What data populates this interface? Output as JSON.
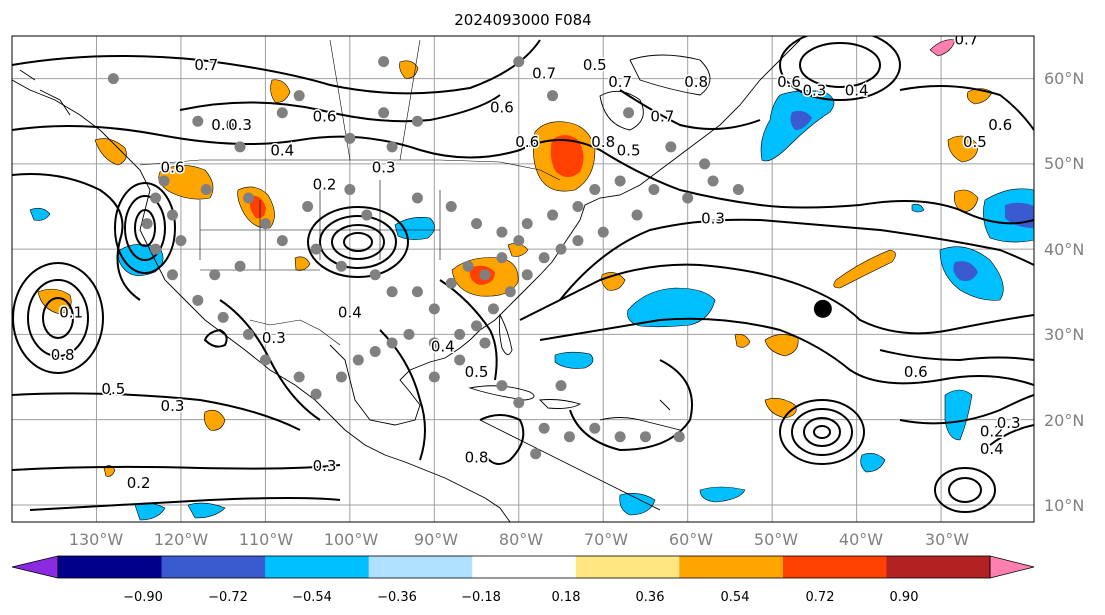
{
  "title": "2024093000 F084",
  "map": {
    "lon_range": [
      -140,
      -19
    ],
    "lat_range": [
      8,
      65
    ],
    "lon_ticks": [
      "130°W",
      "120°W",
      "110°W",
      "100°W",
      "90°W",
      "80°W",
      "70°W",
      "60°W",
      "50°W",
      "40°W",
      "30°W"
    ],
    "lat_ticks": [
      "60°N",
      "50°N",
      "40°N",
      "30°N",
      "20°N",
      "10°N"
    ],
    "grid": true
  },
  "colorbar": {
    "ticks": [
      "−0.90",
      "−0.72",
      "−0.54",
      "−0.36",
      "−0.18",
      "0.18",
      "0.36",
      "0.54",
      "0.72",
      "0.90"
    ],
    "colors": [
      "#8a2be2",
      "#00008b",
      "#3a5bcf",
      "#00bfff",
      "#b0e0ff",
      "#ffffff",
      "#ffe680",
      "#ffa500",
      "#ff4000",
      "#b22222",
      "#ff80b0"
    ],
    "extend": "both"
  },
  "contour_labels": [
    "0.7",
    "0.6",
    "0.3",
    "0.4",
    "0.6",
    "0.2",
    "0.3",
    "0.6",
    "0.7",
    "0.5",
    "0.7",
    "0.6",
    "0.6",
    "0.8",
    "0.5",
    "0.7",
    "0.8",
    "0.6",
    "0.3",
    "0.4",
    "0.7",
    "0.6",
    "0.5",
    "0.3",
    "0.1",
    "0.8",
    "0.5",
    "0.3",
    "0.2",
    "0.4",
    "0.3",
    "0.4",
    "0.5",
    "0.3",
    "0.8",
    "0.6",
    "0.4",
    "0.2",
    "0.3"
  ],
  "marker": {
    "label": "black-dot",
    "lon": -44,
    "lat": 33
  }
}
